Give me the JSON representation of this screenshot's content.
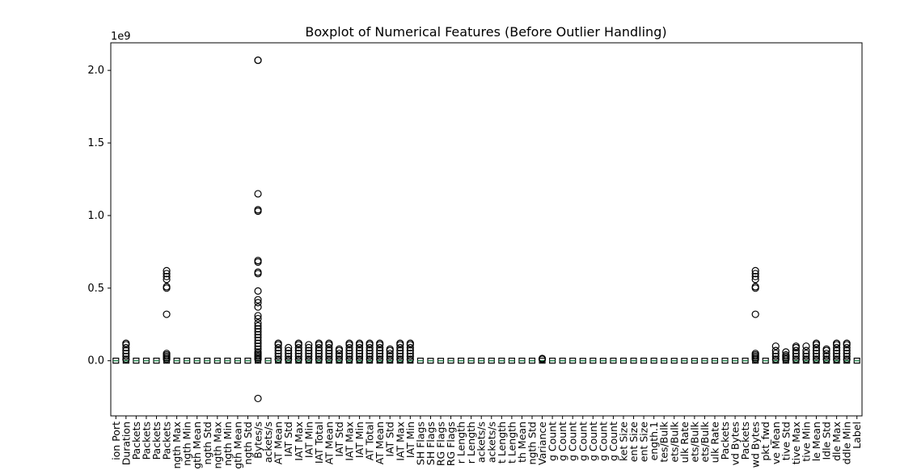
{
  "chart_data": {
    "type": "boxplot",
    "title": "Boxplot of Numerical Features (Before Outlier Handling)",
    "xlabel": "",
    "ylabel": "",
    "y_multiplier_label": "1e9",
    "ylim": [
      -0.38,
      2.19
    ],
    "y_ticks": [
      0.0,
      0.5,
      1.0,
      1.5,
      2.0
    ],
    "y_tick_labels": [
      "0.0",
      "0.5",
      "1.0",
      "1.5",
      "2.0"
    ],
    "grid": false,
    "colors": {
      "box": "#000000",
      "median": "#2e8b57",
      "background": "#ffffff"
    },
    "categories": [
      "ion Port",
      "Duration",
      "Packets",
      "Packets",
      "Packets",
      "Packets",
      "ngth Max",
      "ngth Min",
      "gth Mean",
      "ngth Std",
      "ngth Max",
      "ngth Min",
      "gth Mean",
      "ngth Std",
      "Bytes/s",
      "ackets/s",
      "AT Mean",
      "IAT Std",
      "IAT Max",
      "IAT Min",
      "IAT Total",
      "AT Mean",
      "IAT Std",
      "IAT Max",
      "IAT Min",
      "AT Total",
      "AT Mean",
      "IAT Std",
      "IAT Max",
      "IAT Min",
      "SH Flags",
      "SH Flags",
      "RG Flags",
      "RG Flags",
      "r Length",
      "r Length",
      "ackets/s",
      "ackets/s",
      "t Length",
      "t Length",
      "th Mean",
      "ngth Std",
      "Variance",
      "g Count",
      "g Count",
      "g Count",
      "g Count",
      "g Count",
      "g Count",
      "g Count",
      "ket Size",
      "ent Size",
      "ent Size",
      "ength.1",
      "tes/Bulk",
      "ets/Bulk",
      "ulk Rate",
      "ets/Bulk",
      "ets/Bulk",
      "ulk Rate",
      "Packets",
      "vd Bytes",
      "Packets",
      "wd Bytes",
      "pkt_fwd",
      "ve Mean",
      "tive Std",
      "tive Max",
      "tive Min",
      "le Mean",
      "Idle Std",
      "dle Max",
      "ddle Min",
      "Label"
    ],
    "series": [
      {
        "box": [
          0,
          0.001
        ],
        "outliers": []
      },
      {
        "box": [
          0,
          0.003
        ],
        "outliers": [
          0.01,
          0.03,
          0.05,
          0.07,
          0.09,
          0.11,
          0.12
        ]
      },
      {
        "box": [
          0,
          0.001
        ],
        "outliers": []
      },
      {
        "box": [
          0,
          0.001
        ],
        "outliers": []
      },
      {
        "box": [
          0,
          0.001
        ],
        "outliers": []
      },
      {
        "box": [
          0,
          0.001
        ],
        "outliers": [
          0.01,
          0.02,
          0.03,
          0.04,
          0.05,
          0.32,
          0.5,
          0.51,
          0.56,
          0.58,
          0.6,
          0.62
        ]
      },
      {
        "box": [
          0,
          0.001
        ],
        "outliers": []
      },
      {
        "box": [
          0,
          0.001
        ],
        "outliers": []
      },
      {
        "box": [
          0,
          0.001
        ],
        "outliers": []
      },
      {
        "box": [
          0,
          0.001
        ],
        "outliers": []
      },
      {
        "box": [
          0,
          0.001
        ],
        "outliers": []
      },
      {
        "box": [
          0,
          0.001
        ],
        "outliers": []
      },
      {
        "box": [
          0,
          0.001
        ],
        "outliers": []
      },
      {
        "box": [
          0,
          0.001
        ],
        "outliers": []
      },
      {
        "box": [
          0,
          0.001
        ],
        "outliers": [
          -0.26,
          0.01,
          0.02,
          0.03,
          0.04,
          0.05,
          0.06,
          0.08,
          0.1,
          0.12,
          0.14,
          0.16,
          0.18,
          0.2,
          0.22,
          0.24,
          0.26,
          0.29,
          0.31,
          0.37,
          0.4,
          0.42,
          0.48,
          0.6,
          0.61,
          0.68,
          0.69,
          1.03,
          1.04,
          1.15,
          2.07,
          2.07
        ]
      },
      {
        "box": [
          0,
          0.001
        ],
        "outliers": []
      },
      {
        "box": [
          0,
          0.003
        ],
        "outliers": [
          0.01,
          0.03,
          0.05,
          0.07,
          0.09,
          0.11,
          0.12
        ]
      },
      {
        "box": [
          0,
          0.003
        ],
        "outliers": [
          0.01,
          0.03,
          0.05,
          0.07,
          0.09
        ]
      },
      {
        "box": [
          0,
          0.003
        ],
        "outliers": [
          0.01,
          0.03,
          0.05,
          0.07,
          0.09,
          0.11,
          0.12
        ]
      },
      {
        "box": [
          0,
          0.003
        ],
        "outliers": [
          0.01,
          0.03,
          0.05,
          0.07,
          0.09,
          0.11
        ]
      },
      {
        "box": [
          0,
          0.003
        ],
        "outliers": [
          0.01,
          0.03,
          0.05,
          0.07,
          0.09,
          0.11,
          0.12
        ]
      },
      {
        "box": [
          0,
          0.003
        ],
        "outliers": [
          0.01,
          0.03,
          0.05,
          0.07,
          0.09,
          0.11,
          0.12
        ]
      },
      {
        "box": [
          0,
          0.003
        ],
        "outliers": [
          0.01,
          0.03,
          0.05,
          0.07,
          0.08
        ]
      },
      {
        "box": [
          0,
          0.003
        ],
        "outliers": [
          0.01,
          0.03,
          0.05,
          0.07,
          0.09,
          0.11,
          0.12
        ]
      },
      {
        "box": [
          0,
          0.003
        ],
        "outliers": [
          0.01,
          0.03,
          0.05,
          0.07,
          0.09,
          0.11,
          0.12
        ]
      },
      {
        "box": [
          0,
          0.003
        ],
        "outliers": [
          0.01,
          0.03,
          0.05,
          0.07,
          0.09,
          0.11,
          0.12
        ]
      },
      {
        "box": [
          0,
          0.003
        ],
        "outliers": [
          0.01,
          0.03,
          0.05,
          0.07,
          0.09,
          0.11,
          0.12
        ]
      },
      {
        "box": [
          0,
          0.003
        ],
        "outliers": [
          0.01,
          0.03,
          0.05,
          0.07,
          0.08
        ]
      },
      {
        "box": [
          0,
          0.003
        ],
        "outliers": [
          0.01,
          0.03,
          0.05,
          0.07,
          0.09,
          0.11,
          0.12
        ]
      },
      {
        "box": [
          0,
          0.003
        ],
        "outliers": [
          0.01,
          0.03,
          0.05,
          0.07,
          0.09,
          0.11,
          0.12
        ]
      },
      {
        "box": [
          0,
          0.001
        ],
        "outliers": []
      },
      {
        "box": [
          0,
          0
        ],
        "outliers": []
      },
      {
        "box": [
          0,
          0
        ],
        "outliers": []
      },
      {
        "box": [
          0,
          0
        ],
        "outliers": []
      },
      {
        "box": [
          0,
          0.001
        ],
        "outliers": []
      },
      {
        "box": [
          0,
          0.001
        ],
        "outliers": []
      },
      {
        "box": [
          0,
          0.001
        ],
        "outliers": []
      },
      {
        "box": [
          0,
          0.001
        ],
        "outliers": []
      },
      {
        "box": [
          0,
          0.001
        ],
        "outliers": []
      },
      {
        "box": [
          0,
          0.001
        ],
        "outliers": []
      },
      {
        "box": [
          0,
          0.001
        ],
        "outliers": []
      },
      {
        "box": [
          0,
          0.001
        ],
        "outliers": []
      },
      {
        "box": [
          0,
          0.001
        ],
        "outliers": [
          0.01,
          0.015
        ]
      },
      {
        "box": [
          0,
          0.001
        ],
        "outliers": []
      },
      {
        "box": [
          0,
          0.001
        ],
        "outliers": []
      },
      {
        "box": [
          0,
          0.001
        ],
        "outliers": []
      },
      {
        "box": [
          0,
          0
        ],
        "outliers": []
      },
      {
        "box": [
          0,
          0.001
        ],
        "outliers": []
      },
      {
        "box": [
          0,
          0
        ],
        "outliers": []
      },
      {
        "box": [
          0,
          0.001
        ],
        "outliers": []
      },
      {
        "box": [
          0,
          0.001
        ],
        "outliers": []
      },
      {
        "box": [
          0,
          0.001
        ],
        "outliers": []
      },
      {
        "box": [
          0,
          0.001
        ],
        "outliers": []
      },
      {
        "box": [
          0,
          0.001
        ],
        "outliers": []
      },
      {
        "box": [
          0,
          0
        ],
        "outliers": []
      },
      {
        "box": [
          0,
          0
        ],
        "outliers": []
      },
      {
        "box": [
          0,
          0
        ],
        "outliers": []
      },
      {
        "box": [
          0,
          0
        ],
        "outliers": []
      },
      {
        "box": [
          0,
          0
        ],
        "outliers": []
      },
      {
        "box": [
          0,
          0
        ],
        "outliers": []
      },
      {
        "box": [
          0,
          0.001
        ],
        "outliers": []
      },
      {
        "box": [
          0,
          0.001
        ],
        "outliers": []
      },
      {
        "box": [
          0,
          0.001
        ],
        "outliers": []
      },
      {
        "box": [
          0,
          0.001
        ],
        "outliers": [
          0.01,
          0.02,
          0.03,
          0.04,
          0.05,
          0.32,
          0.5,
          0.51,
          0.56,
          0.58,
          0.6,
          0.62
        ]
      },
      {
        "box": [
          0,
          0.001
        ],
        "outliers": []
      },
      {
        "box": [
          0,
          0.003
        ],
        "outliers": [
          0.01,
          0.03,
          0.05,
          0.07,
          0.1
        ]
      },
      {
        "box": [
          0,
          0.002
        ],
        "outliers": [
          0.01,
          0.02,
          0.03,
          0.04,
          0.06
        ]
      },
      {
        "box": [
          0,
          0.003
        ],
        "outliers": [
          0.01,
          0.03,
          0.05,
          0.07,
          0.09,
          0.1
        ]
      },
      {
        "box": [
          0,
          0.003
        ],
        "outliers": [
          0.01,
          0.03,
          0.05,
          0.07,
          0.1
        ]
      },
      {
        "box": [
          0,
          0.003
        ],
        "outliers": [
          0.01,
          0.03,
          0.05,
          0.07,
          0.09,
          0.11,
          0.12
        ]
      },
      {
        "box": [
          0,
          0.003
        ],
        "outliers": [
          0.01,
          0.03,
          0.05,
          0.07,
          0.08
        ]
      },
      {
        "box": [
          0,
          0.003
        ],
        "outliers": [
          0.01,
          0.03,
          0.05,
          0.07,
          0.09,
          0.11,
          0.12
        ]
      },
      {
        "box": [
          0,
          0.003
        ],
        "outliers": [
          0.01,
          0.03,
          0.05,
          0.07,
          0.09,
          0.11,
          0.12
        ]
      },
      {
        "box": [
          0,
          0.001
        ],
        "outliers": []
      }
    ]
  }
}
